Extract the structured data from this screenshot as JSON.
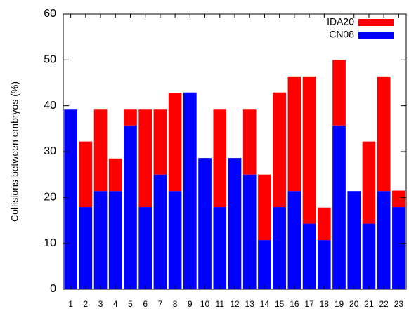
{
  "chart_data": {
    "type": "bar",
    "stacked": true,
    "y_label": "Collisions between embryos (%)",
    "categories": [
      "1",
      "2",
      "3",
      "4",
      "5",
      "6",
      "7",
      "8",
      "9",
      "10",
      "11",
      "12",
      "13",
      "14",
      "15",
      "16",
      "17",
      "18",
      "19",
      "20",
      "21",
      "22",
      "23"
    ],
    "series": [
      {
        "name": "CN08",
        "color": "#0000ff",
        "values": [
          39.3,
          17.9,
          21.4,
          21.4,
          35.7,
          17.9,
          25,
          21.4,
          42.9,
          28.6,
          17.9,
          28.6,
          25,
          10.7,
          17.9,
          21.4,
          14.3,
          10.7,
          35.7,
          21.4,
          14.3,
          21.4,
          17.9
        ]
      },
      {
        "name": "IDA20",
        "color": "#ff0000",
        "values": [
          0,
          14.3,
          17.9,
          7.1,
          3.6,
          21.4,
          14.3,
          21.4,
          0,
          0,
          21.4,
          0,
          14.3,
          14.3,
          25,
          25,
          32.1,
          7.1,
          14.3,
          0,
          17.9,
          25,
          3.6
        ]
      }
    ],
    "ylim": [
      0,
      60
    ],
    "yticks": [
      0,
      10,
      20,
      30,
      40,
      50,
      60
    ],
    "grid": false,
    "legend": "top-right"
  }
}
